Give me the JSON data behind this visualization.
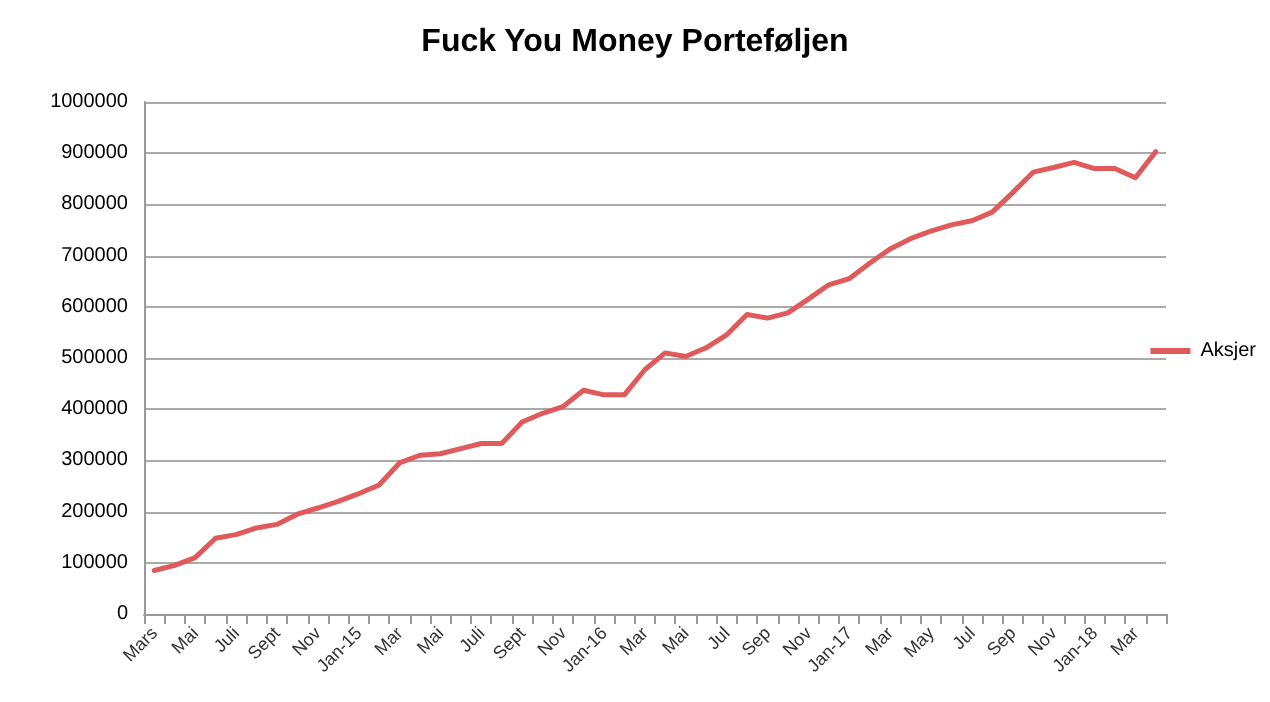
{
  "chart_data": {
    "type": "line",
    "title": "Fuck You Money Porteføljen",
    "categories": [
      "Mars",
      null,
      "Mai",
      null,
      "Juli",
      null,
      "Sept",
      null,
      "Nov",
      null,
      "Jan-15",
      null,
      "Mar",
      null,
      "Mai",
      null,
      "Juli",
      null,
      "Sept",
      null,
      "Nov",
      null,
      "Jan-16",
      null,
      "Mar",
      null,
      "Mai",
      null,
      "Jul",
      null,
      "Sep",
      null,
      "Nov",
      null,
      "Jan-17",
      null,
      "Mar",
      null,
      "May",
      null,
      "Jul",
      null,
      "Sep",
      null,
      "Nov",
      null,
      "Jan-18",
      null,
      "Mar",
      null
    ],
    "series": [
      {
        "name": "Aksjer",
        "color": "#e05a5c",
        "values": [
          85000,
          95000,
          110000,
          148000,
          155000,
          168000,
          175000,
          195000,
          207000,
          220000,
          235000,
          252000,
          295000,
          310000,
          313000,
          323000,
          333000,
          333000,
          375000,
          392000,
          405000,
          437000,
          428000,
          428000,
          477000,
          510000,
          503000,
          520000,
          545000,
          585000,
          578000,
          588000,
          615000,
          643000,
          655000,
          685000,
          713000,
          733000,
          748000,
          760000,
          768000,
          785000,
          823000,
          863000,
          872000,
          882000,
          870000,
          870000,
          852000,
          903000
        ]
      }
    ],
    "ylim": [
      0,
      1000000
    ],
    "yticks": [
      0,
      100000,
      200000,
      300000,
      400000,
      500000,
      600000,
      700000,
      800000,
      900000,
      1000000
    ],
    "grid": "y",
    "legend": "right",
    "marker": "none",
    "line_style": "solid"
  }
}
